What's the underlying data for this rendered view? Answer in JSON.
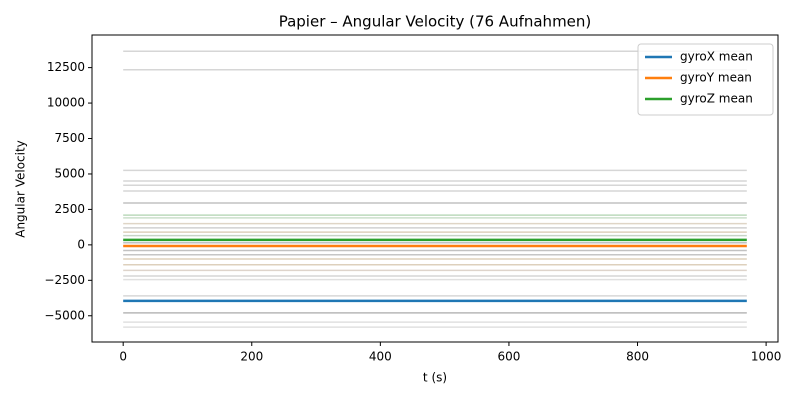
{
  "chart_data": {
    "type": "line",
    "title": "Papier – Angular Velocity (76 Aufnahmen)",
    "x_label": "t (s)",
    "y_label": "Angular Velocity",
    "x": [
      0,
      970
    ],
    "series": [
      {
        "name": "gyroX mean",
        "color": "#1f77b4",
        "values": [
          -3950,
          -3950
        ]
      },
      {
        "name": "gyroY mean",
        "color": "#ff7f0e",
        "values": [
          -80,
          -80
        ]
      },
      {
        "name": "gyroZ mean",
        "color": "#2ca02c",
        "values": [
          350,
          350
        ]
      }
    ],
    "background_lines": [
      {
        "color": "#bbbbbb",
        "values": [
          13650,
          13650
        ]
      },
      {
        "color": "#bbbbbb",
        "values": [
          12350,
          12350
        ]
      },
      {
        "color": "#bbbbbb",
        "values": [
          5250,
          5250
        ]
      },
      {
        "color": "#bbbbbb",
        "values": [
          4500,
          4500
        ]
      },
      {
        "color": "#bbbbbb",
        "values": [
          4200,
          4200
        ]
      },
      {
        "color": "#bbbbbb",
        "values": [
          3800,
          3800
        ]
      },
      {
        "color": "#999999",
        "values": [
          2950,
          2950
        ]
      },
      {
        "color": "#8fbf8f",
        "values": [
          2100,
          2100
        ]
      },
      {
        "color": "#a9c9a9",
        "values": [
          1900,
          1900
        ]
      },
      {
        "color": "#c9b9a0",
        "values": [
          1500,
          1500
        ]
      },
      {
        "color": "#b0b0b0",
        "values": [
          1200,
          1200
        ]
      },
      {
        "color": "#c8b090",
        "values": [
          900,
          900
        ]
      },
      {
        "color": "#a0b8a0",
        "values": [
          650,
          650
        ]
      },
      {
        "color": "#999999",
        "values": [
          150,
          150
        ]
      },
      {
        "color": "#999999",
        "values": [
          -400,
          -400
        ]
      },
      {
        "color": "#a0a0a0",
        "values": [
          -700,
          -700
        ]
      },
      {
        "color": "#c8b090",
        "values": [
          -1000,
          -1000
        ]
      },
      {
        "color": "#c8b090",
        "values": [
          -1400,
          -1400
        ]
      },
      {
        "color": "#c8b8a8",
        "values": [
          -1800,
          -1800
        ]
      },
      {
        "color": "#bbbbbb",
        "values": [
          -2200,
          -2200
        ]
      },
      {
        "color": "#cccccc",
        "values": [
          -2450,
          -2450
        ]
      },
      {
        "color": "#bbbbbb",
        "values": [
          -3600,
          -3600
        ]
      },
      {
        "color": "#888888",
        "values": [
          -4800,
          -4800
        ]
      },
      {
        "color": "#cccccc",
        "values": [
          -5450,
          -5450
        ]
      },
      {
        "color": "#cccccc",
        "values": [
          -5800,
          -5800
        ]
      }
    ],
    "xlim": [
      -48.5,
      1018.5
    ],
    "xticks": [
      0,
      200,
      400,
      600,
      800,
      1000
    ],
    "ylim": [
      -6850,
      14800
    ],
    "yticks": [
      {
        "value": -5000,
        "label": "−5000"
      },
      {
        "value": -2500,
        "label": "−2500"
      },
      0,
      2500,
      5000,
      7500,
      10000,
      12500
    ],
    "legend": "upper right"
  }
}
